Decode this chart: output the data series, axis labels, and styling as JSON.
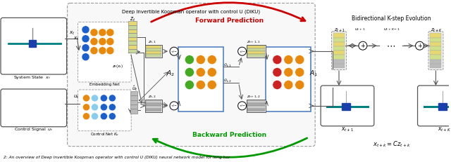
{
  "title": "Deep Invertible Koopman operator with control U (DIKU)",
  "caption": "2: An overview of Deep Invertible Koopman operator with control U (DIKU) neural network model for long hor",
  "forward_label": "Forward Prediction",
  "backward_label": "Backward Prediction",
  "bidirectional_label": "Bidirectional K-step Evolution",
  "bg_color": "#ffffff",
  "neuron_orange": "#e8890c",
  "neuron_blue": "#1a5fcc",
  "neuron_lightblue": "#88ccee",
  "neuron_green": "#44aa22",
  "neuron_red": "#cc2222",
  "teal_line": "#008080",
  "dark_rect": "#1a1a33",
  "yellow_rect": "#e8d870",
  "green_rect": "#c8d8a0",
  "gray_rect": "#aaaaaa"
}
